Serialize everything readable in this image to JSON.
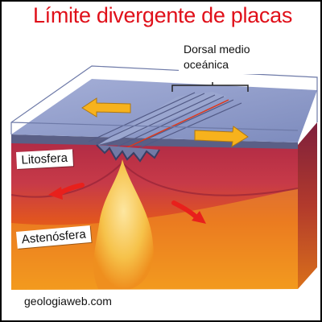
{
  "title": "Límite divergente de placas",
  "labels": {
    "ridge_line1": "Dorsal medio",
    "ridge_line2": "oceánica",
    "lithosphere": "Litosfera",
    "asthenosphere": "Astenósfera"
  },
  "source": "geologiaweb.com",
  "colors": {
    "title_red": "#e0101a",
    "ocean": "#8e9bc7",
    "lithosphere": "#c0324a",
    "asthenosphere": "#f08a1e",
    "magma": "#f6c24a",
    "arrow_yellow": "#f7b21d",
    "arrow_red": "#e8201c"
  },
  "arrows": {
    "surface": [
      "left",
      "right"
    ],
    "mantle": [
      "counterclockwise-left",
      "clockwise-right"
    ]
  }
}
